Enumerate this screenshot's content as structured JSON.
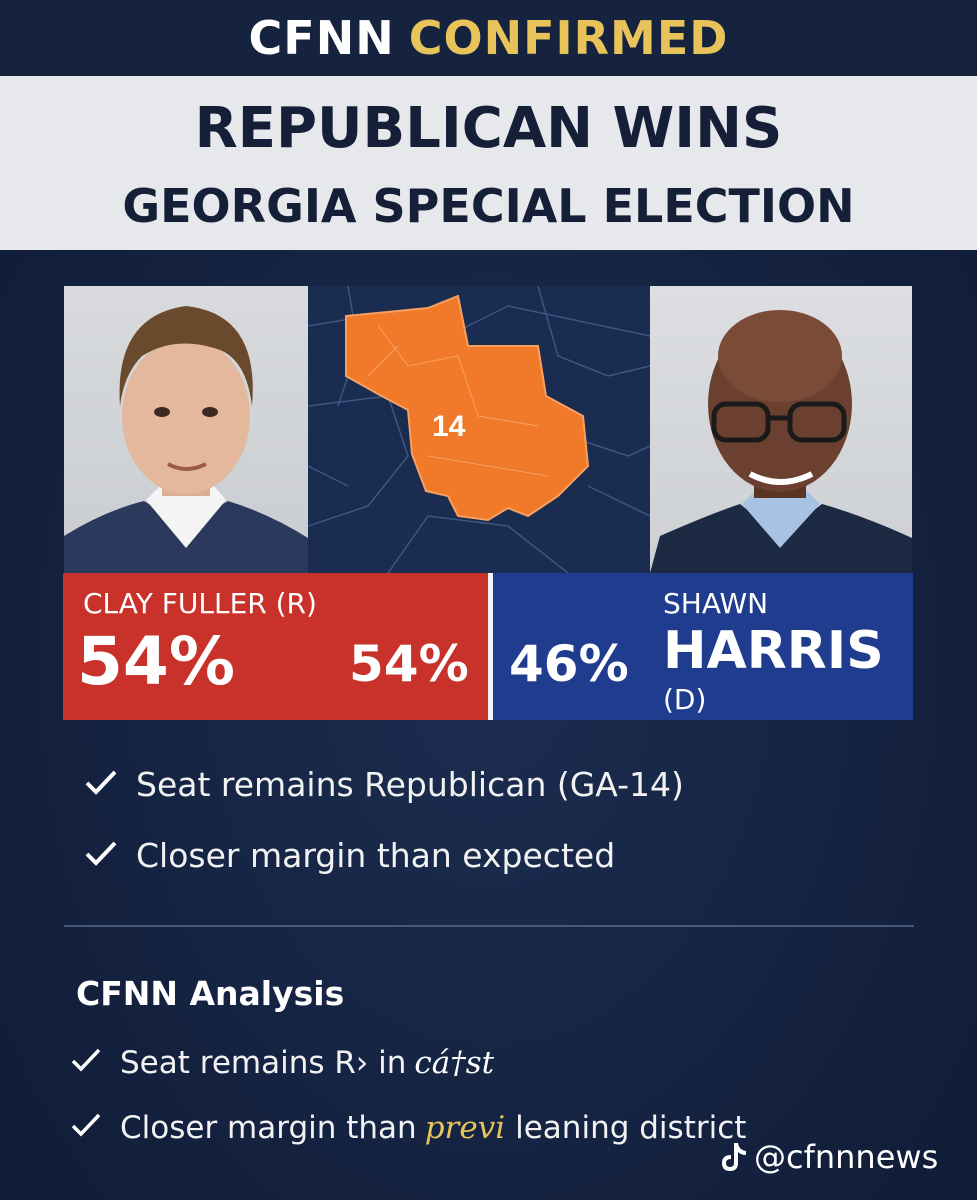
{
  "header": {
    "brand": "CFNN",
    "tag": "CONFIRMED",
    "headline_line1": "REPUBLICAN WINS",
    "headline_line2": "GEORGIA SPECIAL ELECTION"
  },
  "map": {
    "district_label": "14"
  },
  "results": {
    "republican": {
      "name": "CLAY FULLER (R)",
      "percent": "54%",
      "percent_repeat": "54%",
      "color": "#c8322a"
    },
    "democrat": {
      "first_name": "SHAWN",
      "last_name": "HARRIS",
      "party": "(D)",
      "percent": "46%",
      "color": "#1f3c8e"
    }
  },
  "bullets": [
    "Seat remains Republican (GA-14)",
    "Closer margin than expected"
  ],
  "analysis": {
    "title": "CFNN Analysis",
    "items": [
      {
        "text": "Seat remains R› in",
        "handwritten": "cá†st"
      },
      {
        "text": "Closer margin than",
        "handwritten": "previ",
        "suffix": "leaning district"
      }
    ]
  },
  "watermark": {
    "handle": "@cfnnnews",
    "icon": "tiktok-icon"
  },
  "colors": {
    "accent_gold": "#e7c35a",
    "background": "#15233f",
    "map_orange": "#f07a2a"
  }
}
